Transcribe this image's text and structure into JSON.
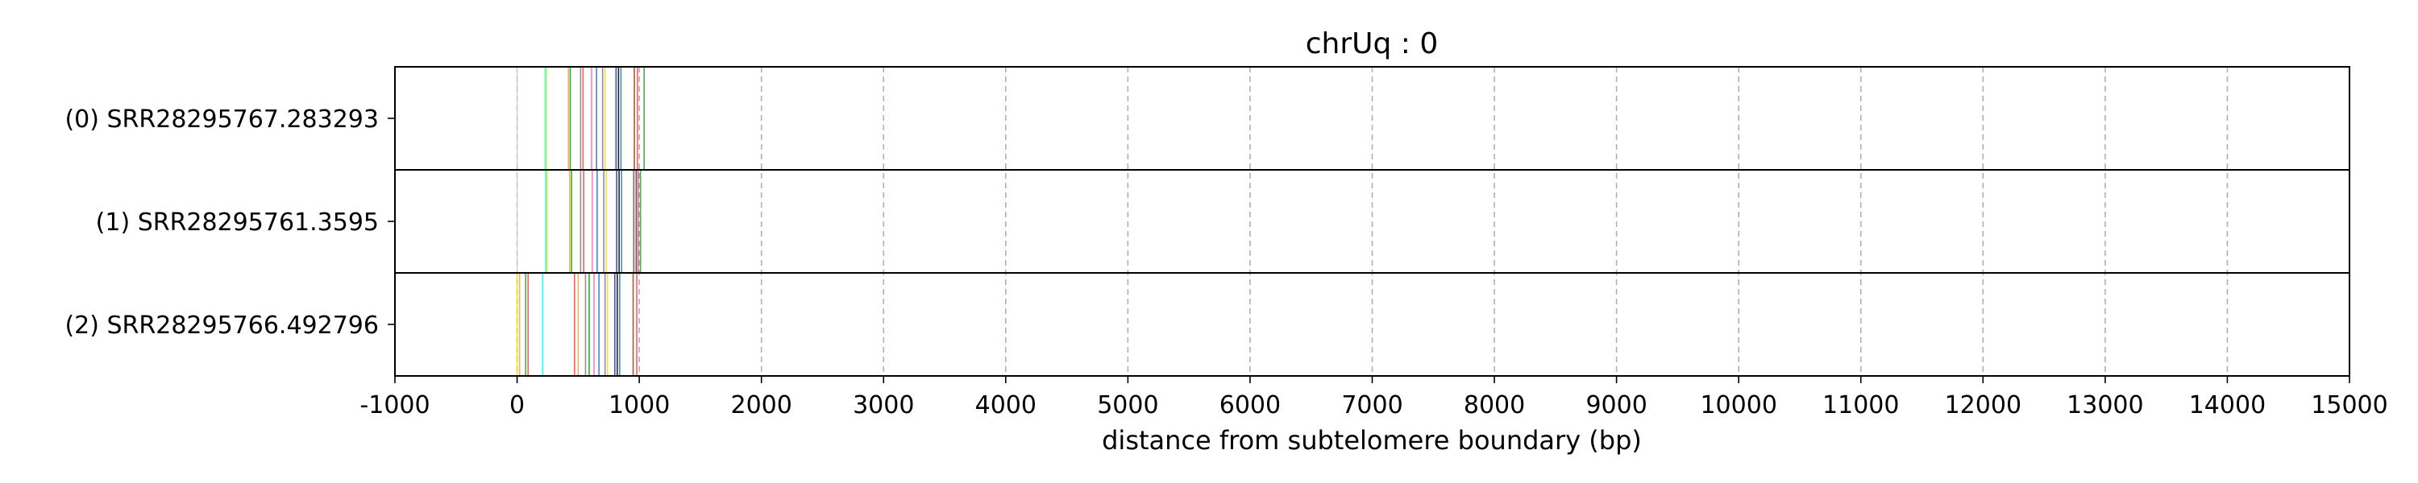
{
  "chart_data": {
    "type": "rug",
    "title": "chrUq : 0",
    "xlabel": "distance from subtelomere boundary (bp)",
    "ylabel": "",
    "xlim": [
      -1000,
      15000
    ],
    "xticks": [
      -1000,
      0,
      1000,
      2000,
      3000,
      4000,
      5000,
      6000,
      7000,
      8000,
      9000,
      10000,
      11000,
      12000,
      13000,
      14000,
      15000
    ],
    "grid": "vertical dashed at x ticks",
    "rows": [
      {
        "label": "(0) SRR28295767.283293",
        "marks": [
          {
            "x": 0,
            "color": "#d0d0d0"
          },
          {
            "x": 230,
            "color": "#00ffff"
          },
          {
            "x": 240,
            "color": "#e8e800"
          },
          {
            "x": 420,
            "color": "#ff9f40"
          },
          {
            "x": 435,
            "color": "#00aa00"
          },
          {
            "x": 520,
            "color": "#808080"
          },
          {
            "x": 540,
            "color": "#ff4040"
          },
          {
            "x": 610,
            "color": "#ff69b4"
          },
          {
            "x": 650,
            "color": "#1f77b4"
          },
          {
            "x": 700,
            "color": "#9467bd"
          },
          {
            "x": 720,
            "color": "#e8e800"
          },
          {
            "x": 810,
            "color": "#1f3a93"
          },
          {
            "x": 830,
            "color": "#000000"
          },
          {
            "x": 850,
            "color": "#1f77b4"
          },
          {
            "x": 960,
            "color": "#8b4513"
          },
          {
            "x": 985,
            "color": "#ff4040"
          },
          {
            "x": 1040,
            "color": "#2ca02c"
          }
        ]
      },
      {
        "label": "(1) SRR28295761.3595",
        "marks": [
          {
            "x": 0,
            "color": "#d0d0d0"
          },
          {
            "x": 235,
            "color": "#00ffff"
          },
          {
            "x": 245,
            "color": "#e8e800"
          },
          {
            "x": 430,
            "color": "#ff9f40"
          },
          {
            "x": 445,
            "color": "#00aa00"
          },
          {
            "x": 520,
            "color": "#808080"
          },
          {
            "x": 545,
            "color": "#ff4040"
          },
          {
            "x": 615,
            "color": "#ff69b4"
          },
          {
            "x": 655,
            "color": "#1f77b4"
          },
          {
            "x": 710,
            "color": "#9467bd"
          },
          {
            "x": 730,
            "color": "#e8e800"
          },
          {
            "x": 815,
            "color": "#1f3a93"
          },
          {
            "x": 835,
            "color": "#000000"
          },
          {
            "x": 855,
            "color": "#1f77b4"
          },
          {
            "x": 955,
            "color": "#8b4513"
          },
          {
            "x": 975,
            "color": "#1f3a93"
          },
          {
            "x": 990,
            "color": "#ff4040"
          },
          {
            "x": 1010,
            "color": "#2ca02c"
          }
        ]
      },
      {
        "label": "(2) SRR28295766.492796",
        "marks": [
          {
            "x": 0,
            "color": "#e8e800"
          },
          {
            "x": 20,
            "color": "#ff9f40"
          },
          {
            "x": 70,
            "color": "#2ca02c"
          },
          {
            "x": 90,
            "color": "#ff4040"
          },
          {
            "x": 210,
            "color": "#00ffff"
          },
          {
            "x": 470,
            "color": "#ff4040"
          },
          {
            "x": 500,
            "color": "#ff9f40"
          },
          {
            "x": 560,
            "color": "#808080"
          },
          {
            "x": 590,
            "color": "#00aa00"
          },
          {
            "x": 630,
            "color": "#ff69b4"
          },
          {
            "x": 670,
            "color": "#1f77b4"
          },
          {
            "x": 720,
            "color": "#9467bd"
          },
          {
            "x": 740,
            "color": "#e8e800"
          },
          {
            "x": 800,
            "color": "#1f3a93"
          },
          {
            "x": 820,
            "color": "#000000"
          },
          {
            "x": 840,
            "color": "#1f77b4"
          },
          {
            "x": 950,
            "color": "#8b4513"
          },
          {
            "x": 980,
            "color": "#ff4040"
          }
        ]
      }
    ]
  }
}
